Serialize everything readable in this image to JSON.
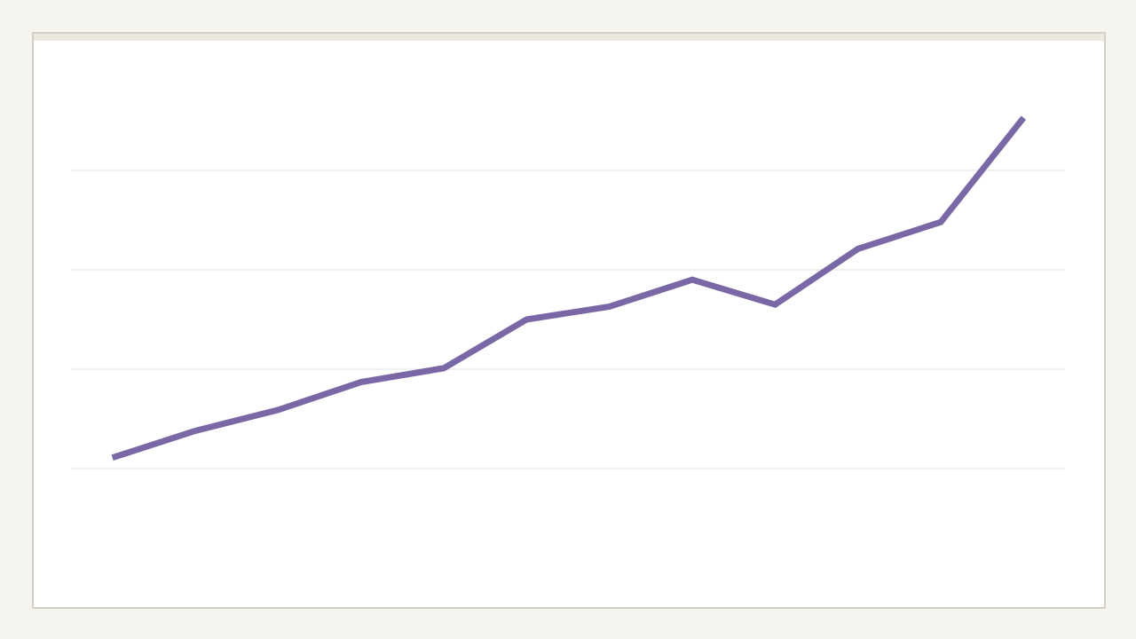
{
  "chart_data": {
    "type": "line",
    "categories": [
      null,
      null,
      null,
      null,
      null,
      null,
      null,
      null,
      null,
      null,
      null,
      null
    ],
    "series": [
      {
        "color": "#7a68a6",
        "values": [
          1.11,
          1.38,
          1.59,
          1.87,
          2.01,
          2.5,
          2.63,
          2.9,
          2.65,
          3.21,
          3.48,
          4.53
        ]
      }
    ],
    "ylim": [
      0,
      5
    ],
    "yticks": [
      1,
      2,
      3,
      4
    ],
    "grid": true
  }
}
